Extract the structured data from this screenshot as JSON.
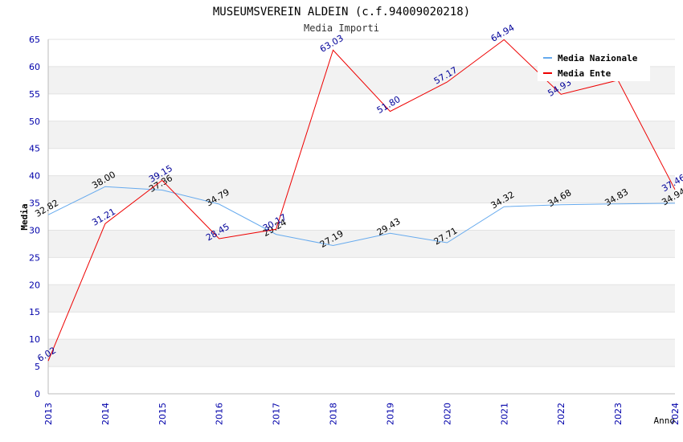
{
  "chart_data": {
    "type": "line",
    "title": "MUSEUMSVEREIN ALDEIN (c.f.94009020218)",
    "subtitle": "Media Importi",
    "xlabel": "Anno",
    "ylabel": "Media",
    "categories": [
      "2013",
      "2014",
      "2015",
      "2016",
      "2017",
      "2018",
      "2019",
      "2020",
      "2021",
      "2022",
      "2023",
      "2024"
    ],
    "ylim": [
      0,
      65
    ],
    "yticks": [
      0,
      5,
      10,
      15,
      20,
      25,
      30,
      35,
      40,
      45,
      50,
      55,
      60,
      65
    ],
    "grid": true,
    "legend_position": "top-right",
    "series": [
      {
        "name": "Media Nazionale",
        "color": "#66aaee",
        "label_color": "#000000",
        "values": [
          32.82,
          38.0,
          37.36,
          34.79,
          29.24,
          27.19,
          29.43,
          27.71,
          34.32,
          34.68,
          34.83,
          34.94
        ],
        "labels": [
          "32.82",
          "38.00",
          "37.36",
          "34.79",
          "29.24",
          "27.19",
          "29.43",
          "27.71",
          "34.32",
          "34.68",
          "34.83",
          "34.94"
        ]
      },
      {
        "name": "Media Ente",
        "color": "#ee0000",
        "label_color": "#000099",
        "values": [
          6.02,
          31.21,
          39.15,
          28.45,
          30.17,
          63.03,
          51.8,
          57.17,
          64.94,
          54.93,
          57.51,
          37.46
        ],
        "labels": [
          "6.02",
          "31.21",
          "39.15",
          "28.45",
          "30.17",
          "63.03",
          "51.80",
          "57.17",
          "64.94",
          "54.93",
          "",
          "37.46"
        ]
      }
    ]
  }
}
